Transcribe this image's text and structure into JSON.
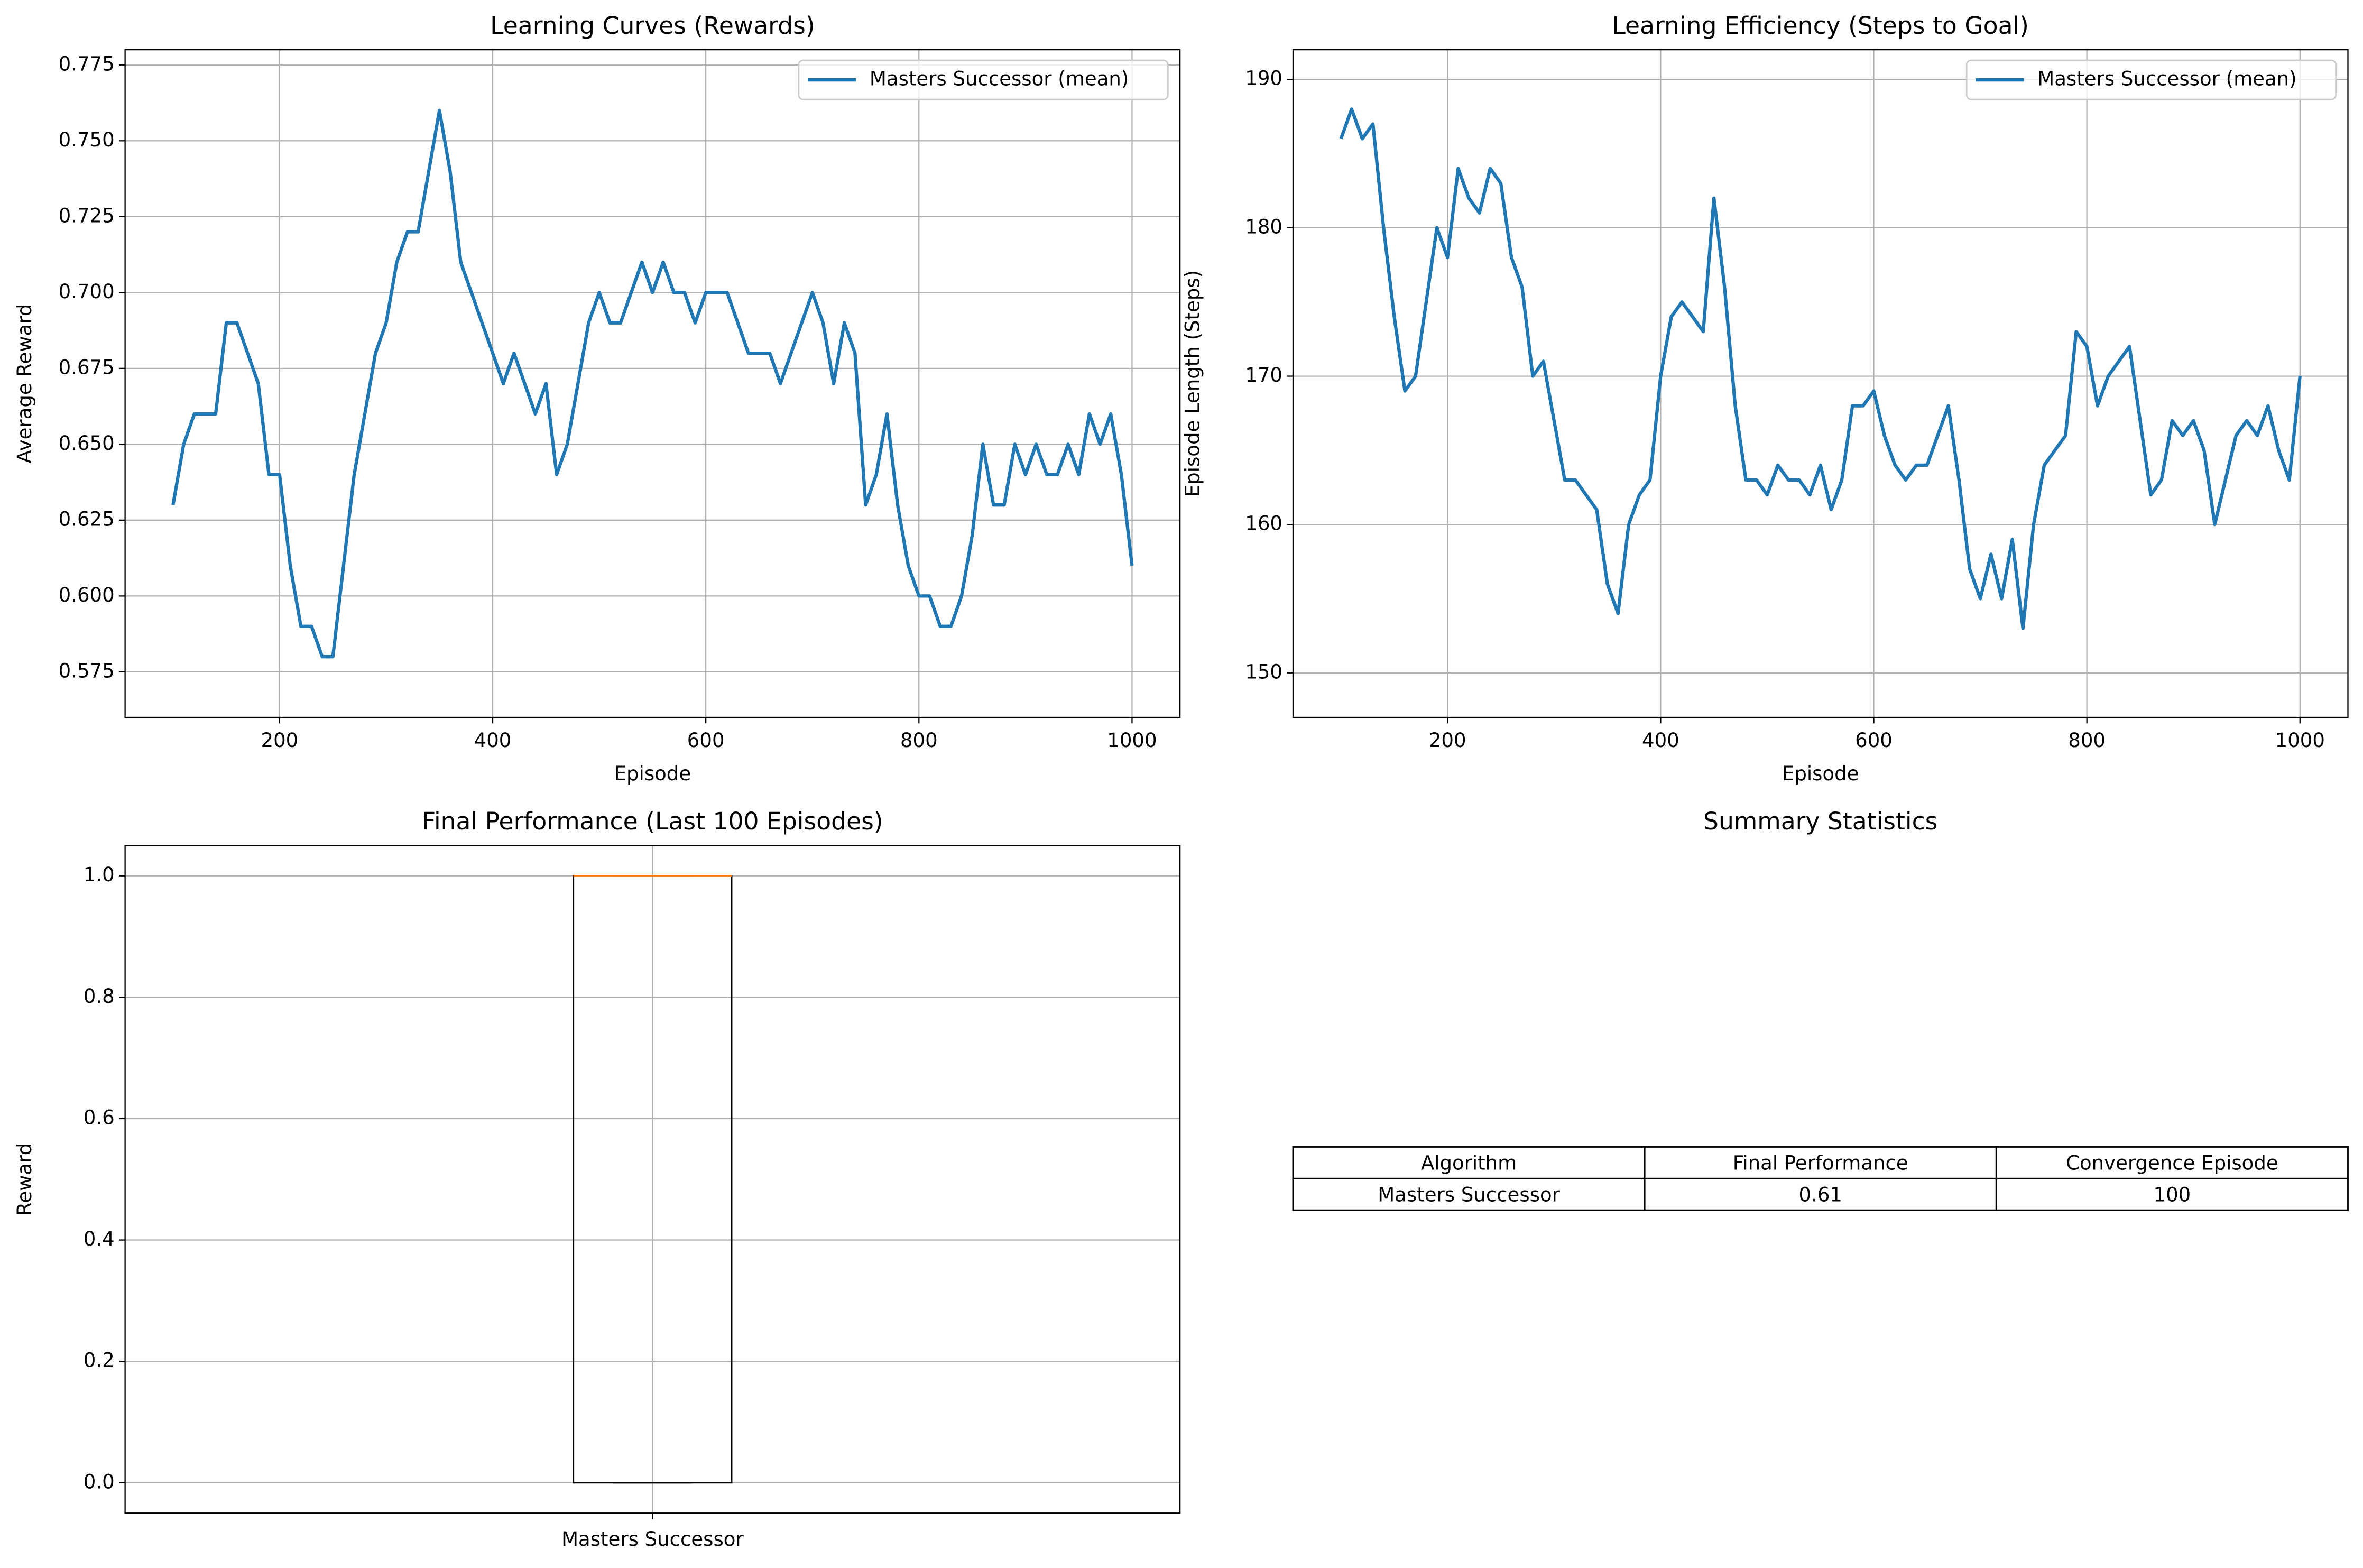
{
  "chart_data": [
    {
      "type": "line",
      "title": "Learning Curves (Rewards)",
      "xlabel": "Episode",
      "ylabel": "Average Reward",
      "x": [
        100,
        110,
        120,
        130,
        140,
        150,
        160,
        170,
        180,
        190,
        200,
        210,
        220,
        230,
        240,
        250,
        260,
        270,
        280,
        290,
        300,
        310,
        320,
        330,
        340,
        350,
        360,
        370,
        380,
        390,
        400,
        410,
        420,
        430,
        440,
        450,
        460,
        470,
        480,
        490,
        500,
        510,
        520,
        530,
        540,
        550,
        560,
        570,
        580,
        590,
        600,
        610,
        620,
        630,
        640,
        650,
        660,
        670,
        680,
        690,
        700,
        710,
        720,
        730,
        740,
        750,
        760,
        770,
        780,
        790,
        800,
        810,
        820,
        830,
        840,
        850,
        860,
        870,
        880,
        890,
        900,
        910,
        920,
        930,
        940,
        950,
        960,
        970,
        980,
        990,
        1000
      ],
      "series": [
        {
          "name": "Masters Successor (mean)",
          "color": "#1f77b4",
          "values": [
            0.63,
            0.65,
            0.66,
            0.66,
            0.66,
            0.69,
            0.69,
            0.68,
            0.67,
            0.64,
            0.64,
            0.61,
            0.59,
            0.59,
            0.58,
            0.58,
            0.61,
            0.64,
            0.66,
            0.68,
            0.69,
            0.71,
            0.72,
            0.72,
            0.74,
            0.76,
            0.74,
            0.71,
            0.7,
            0.69,
            0.68,
            0.67,
            0.68,
            0.67,
            0.66,
            0.67,
            0.64,
            0.65,
            0.67,
            0.69,
            0.7,
            0.69,
            0.69,
            0.7,
            0.71,
            0.7,
            0.71,
            0.7,
            0.7,
            0.69,
            0.7,
            0.7,
            0.7,
            0.69,
            0.68,
            0.68,
            0.68,
            0.67,
            0.68,
            0.69,
            0.7,
            0.69,
            0.67,
            0.69,
            0.68,
            0.63,
            0.64,
            0.66,
            0.63,
            0.61,
            0.6,
            0.6,
            0.59,
            0.59,
            0.6,
            0.62,
            0.65,
            0.63,
            0.63,
            0.65,
            0.64,
            0.65,
            0.64,
            0.64,
            0.65,
            0.64,
            0.66,
            0.65,
            0.66,
            0.64,
            0.61
          ]
        }
      ],
      "xlim": [
        55,
        1045
      ],
      "ylim": [
        0.56,
        0.78
      ],
      "xticks": [
        200,
        400,
        600,
        800,
        1000
      ],
      "yticks": [
        0.575,
        {
          "value": 0.6,
          "label": "0.600"
        },
        0.625,
        {
          "value": 0.65,
          "label": "0.650"
        },
        0.675,
        {
          "value": 0.7,
          "label": "0.700"
        },
        0.725,
        {
          "value": 0.75,
          "label": "0.750"
        },
        0.775
      ],
      "grid": true,
      "legend": "upper right"
    },
    {
      "type": "line",
      "title": "Learning Efficiency (Steps to Goal)",
      "xlabel": "Episode",
      "ylabel": "Episode Length (Steps)",
      "x": [
        100,
        110,
        120,
        130,
        140,
        150,
        160,
        170,
        180,
        190,
        200,
        210,
        220,
        230,
        240,
        250,
        260,
        270,
        280,
        290,
        300,
        310,
        320,
        330,
        340,
        350,
        360,
        370,
        380,
        390,
        400,
        410,
        420,
        430,
        440,
        450,
        460,
        470,
        480,
        490,
        500,
        510,
        520,
        530,
        540,
        550,
        560,
        570,
        580,
        590,
        600,
        610,
        620,
        630,
        640,
        650,
        660,
        670,
        680,
        690,
        700,
        710,
        720,
        730,
        740,
        750,
        760,
        770,
        780,
        790,
        800,
        810,
        820,
        830,
        840,
        850,
        860,
        870,
        880,
        890,
        900,
        910,
        920,
        930,
        940,
        950,
        960,
        970,
        980,
        990,
        1000
      ],
      "series": [
        {
          "name": "Masters Successor (mean)",
          "color": "#1f77b4",
          "values": [
            186,
            188,
            186,
            187,
            180,
            174,
            169,
            170,
            175,
            180,
            178,
            184,
            182,
            181,
            184,
            183,
            178,
            176,
            170,
            171,
            167,
            163,
            163,
            162,
            161,
            156,
            154,
            160,
            162,
            163,
            170,
            174,
            175,
            174,
            173,
            182,
            176,
            168,
            163,
            163,
            162,
            164,
            163,
            163,
            162,
            164,
            161,
            163,
            168,
            168,
            169,
            166,
            164,
            163,
            164,
            164,
            166,
            168,
            163,
            157,
            155,
            158,
            155,
            159,
            153,
            160,
            164,
            165,
            166,
            173,
            172,
            168,
            170,
            171,
            172,
            167,
            162,
            163,
            167,
            166,
            167,
            165,
            160,
            163,
            166,
            167,
            166,
            168,
            165,
            163,
            170
          ]
        }
      ],
      "xlim": [
        55,
        1045
      ],
      "ylim": [
        147,
        192
      ],
      "xticks": [
        200,
        400,
        600,
        800,
        1000
      ],
      "yticks": [
        150,
        160,
        170,
        180,
        190
      ],
      "grid": true,
      "legend": "upper right"
    },
    {
      "type": "box",
      "title": "Final Performance (Last 100 Episodes)",
      "ylabel": "Reward",
      "categories": [
        "Masters Successor"
      ],
      "boxes": [
        {
          "whislo": 0,
          "q1": 0,
          "median": 1,
          "q3": 1,
          "whishi": 1
        }
      ],
      "color": "#000000",
      "median_color": "#ff7f0e",
      "ylim": [
        -0.05,
        1.05
      ],
      "yticks": [
        {
          "value": 0,
          "label": "0.0"
        },
        {
          "value": 0.2,
          "label": "0.2"
        },
        {
          "value": 0.4,
          "label": "0.4"
        },
        {
          "value": 0.6,
          "label": "0.6"
        },
        {
          "value": 0.8,
          "label": "0.8"
        },
        {
          "value": 1,
          "label": "1.0"
        }
      ],
      "grid": true
    },
    {
      "type": "table",
      "title": "Summary Statistics",
      "columns": [
        "Algorithm",
        "Final Performance",
        "Convergence Episode"
      ],
      "rows": [
        [
          "Masters Successor",
          "0.61",
          "100"
        ]
      ]
    }
  ]
}
